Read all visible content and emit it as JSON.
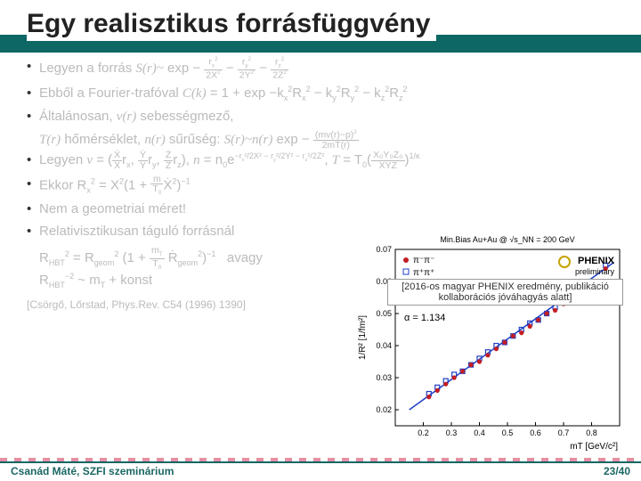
{
  "title": "Egy realisztikus forrásfüggvény",
  "footer": {
    "left": "Csanád Máté, SZFI szeminárium",
    "right": "23/40"
  },
  "bullets": [
    {
      "html": "Legyen a forrás <span class='f'>S(r)~</span> exp − <span class='frac'><span class='n'>r<span class='sub'>x</span><span class='sup'>2</span></span><span class='d'>2X<span class='sup'>2</span></span></span> − <span class='frac'><span class='n'>r<span class='sub'>y</span><span class='sup'>2</span></span><span class='d'>2Y<span class='sup'>2</span></span></span> − <span class='frac'><span class='n'>r<span class='sub'>z</span><span class='sup'>2</span></span><span class='d'>2Z<span class='sup'>2</span></span></span>",
      "dim": true
    },
    {
      "html": "Ebből a Fourier-trafóval <span class='f'>C(k)</span> = 1 + exp −k<span class='sub'>x</span><span class='sup'>2</span>R<span class='sub'>x</span><span class='sup'>2</span> − k<span class='sub'>y</span><span class='sup'>2</span>R<span class='sub'>y</span><span class='sup'>2</span> − k<span class='sub'>z</span><span class='sup'>2</span>R<span class='sub'>z</span><span class='sup'>2</span>",
      "dim": true
    },
    {
      "html": "Általánosan, <span class='f'>v(r)</span> sebességmező,",
      "dim": true
    },
    {
      "html_noBullet": "<span class='f'>T(r)</span> hőmérséklet, <span class='f'>n(r)</span> sűrűség: <span class='f'>S(r)~n(r)</span> exp − <span class='frac'><span class='n'>(mv(r)−p)<span class='sup'>2</span></span><span class='d'>2mT(r)</span></span>",
      "dim": true
    },
    {
      "html": "Legyen <span class='f'>v</span> = (<span class='frac'><span class='n'>Ẋ</span><span class='d'>X</span></span>r<span class='sub'>x</span>, <span class='frac'><span class='n'>Ẏ</span><span class='d'>Y</span></span>r<span class='sub'>y</span>, <span class='frac'><span class='n'>Ż</span><span class='d'>Z</span></span>r<span class='sub'>z</span>), <span class='f'>n</span> = n<span class='sub'>0</span>e<span class='sup'>−r<span class='sub'>x</span>²/2X² − r<span class='sub'>y</span>²/2Y² − r<span class='sub'>z</span>²/2Z²</span>, <span class='f'>T</span> = T<span class='sub'>0</span>(<span class='frac'><span class='n'>X₀Y₀Z₀</span><span class='d'>XYZ</span></span>)<span class='sup'>1/κ</span>",
      "dim": true
    },
    {
      "html": "Ekkor R<span class='sub'>x</span><span class='sup'>2</span> = X<span class='sup'>2</span>(1 + <span class='frac'><span class='n'>m</span><span class='d'>T<span class='sub'>0</span></span></span>Ẋ<span class='sup'>2</span>)<span class='sup'>−1</span>",
      "dim": true
    },
    {
      "html": "Nem a geometriai méret!",
      "dim": true
    },
    {
      "html": "Relativisztikusan táguló forrásnál",
      "dim": true
    }
  ],
  "eq_block": {
    "line1": "R<span class='sub'>HBT</span><span class='sup'>2</span> = R<span class='sub'>geom</span><span class='sup'>2</span> (1 + <span class='frac'><span class='n'>m<span class='sub'>T</span></span><span class='d'>T<span class='sub'>0</span></span></span> Ṙ<span class='sub'>geom</span><span class='sup'>2</span>)<span class='sup'>−1</span> &nbsp; avagy",
    "line2": "R<span class='sub'>HBT</span><span class='sup'>−2</span> ~ m<span class='sub'>T</span> + konst"
  },
  "citation": "[Csörgő, Lőrstad, Phys.Rev. C54 (1996) 1390]",
  "note": "[2016-os magyar PHENIX eredmény, publikáció kollaborációs jóváhagyás alatt]",
  "chart": {
    "type": "scatter-linear",
    "header": "Min.Bias Au+Au @ √s_NN = 200 GeV",
    "logo": "PHENIX",
    "logo_sub": "preliminary",
    "legend": [
      {
        "label": "π⁻π⁻",
        "color": "#c41e23",
        "marker": "circle"
      },
      {
        "label": "π⁺π⁺",
        "color": "#1f3fc4",
        "marker": "square-open"
      }
    ],
    "alpha_label": "α = 1.134",
    "xlabel": "mT [GeV/c²]",
    "ylabel": "1/R² [1/fm²]",
    "xlim": [
      0.1,
      0.9
    ],
    "ylim": [
      0.015,
      0.07
    ],
    "x_ticks": [
      0.2,
      0.3,
      0.4,
      0.5,
      0.6,
      0.7,
      0.8
    ],
    "y_ticks": [
      0.02,
      0.03,
      0.04,
      0.05,
      0.06,
      0.07
    ],
    "points_red": {
      "x": [
        0.22,
        0.25,
        0.28,
        0.31,
        0.34,
        0.37,
        0.4,
        0.43,
        0.46,
        0.49,
        0.52,
        0.55,
        0.58,
        0.61,
        0.64,
        0.67,
        0.7,
        0.73,
        0.76,
        0.79,
        0.85
      ],
      "y": [
        0.024,
        0.026,
        0.028,
        0.03,
        0.032,
        0.034,
        0.035,
        0.037,
        0.039,
        0.041,
        0.043,
        0.044,
        0.046,
        0.048,
        0.05,
        0.051,
        0.053,
        0.055,
        0.057,
        0.058,
        0.064
      ]
    },
    "points_blue": {
      "x": [
        0.22,
        0.25,
        0.28,
        0.31,
        0.34,
        0.37,
        0.4,
        0.43,
        0.46,
        0.49,
        0.52,
        0.55,
        0.58,
        0.61,
        0.64,
        0.67,
        0.7,
        0.73,
        0.76,
        0.79,
        0.85
      ],
      "y": [
        0.025,
        0.027,
        0.029,
        0.031,
        0.032,
        0.034,
        0.036,
        0.038,
        0.04,
        0.041,
        0.043,
        0.045,
        0.047,
        0.048,
        0.05,
        0.052,
        0.054,
        0.055,
        0.057,
        0.059,
        0.065
      ]
    },
    "fit_line": {
      "x": [
        0.15,
        0.88
      ],
      "y": [
        0.02,
        0.066
      ],
      "color": "#1f3fc4"
    },
    "axis_color": "#000",
    "grid_color": "#ddd",
    "background": "#fff",
    "font_size_axis": 9,
    "font_size_header": 9
  }
}
